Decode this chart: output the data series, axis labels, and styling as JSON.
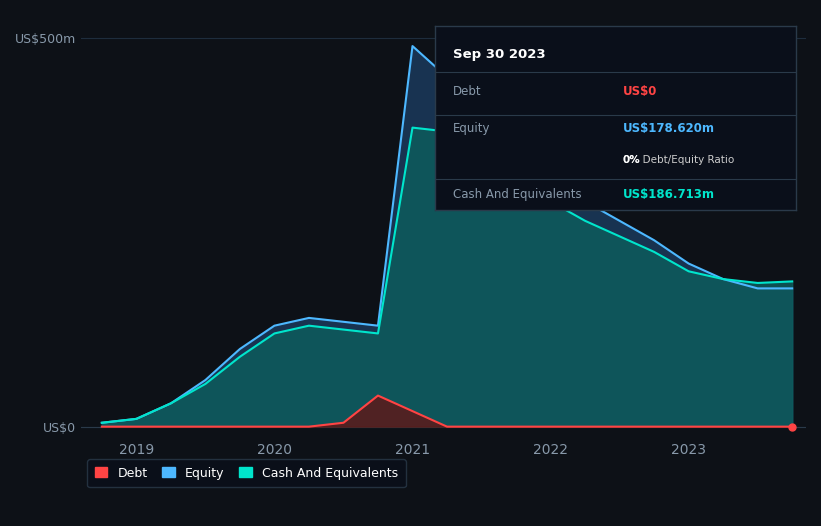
{
  "bg_color": "#0d1117",
  "chart_bg": "#131a24",
  "grid_color": "#1e2d3d",
  "title_text": "Sep 30 2023",
  "tooltip": {
    "title": "Sep 30 2023",
    "debt_label": "Debt",
    "debt_value": "US$0",
    "debt_color": "#ff4444",
    "equity_label": "Equity",
    "equity_value": "US$178.620m",
    "equity_color": "#4db8ff",
    "ratio_value": "0% Debt/Equity Ratio",
    "cash_label": "Cash And Equivalents",
    "cash_value": "US$186.713m",
    "cash_color": "#00e5cc"
  },
  "ylabel_top": "US$500m",
  "ylabel_bottom": "US$0",
  "x_ticks": [
    "2019",
    "2020",
    "2021",
    "2022",
    "2023"
  ],
  "equity_color": "#4db8ff",
  "cash_color": "#00e5cc",
  "debt_color": "#ff4444",
  "equity_fill": "#1a3a5c",
  "cash_fill": "#0d5c5c",
  "debt_fill": "#5c1a1a",
  "legend": [
    {
      "label": "Debt",
      "color": "#ff4444"
    },
    {
      "label": "Equity",
      "color": "#4db8ff"
    },
    {
      "label": "Cash And Equivalents",
      "color": "#00e5cc"
    }
  ],
  "x_data": [
    2018.75,
    2019.0,
    2019.25,
    2019.5,
    2019.75,
    2020.0,
    2020.25,
    2020.5,
    2020.75,
    2021.0,
    2021.25,
    2021.5,
    2021.75,
    2022.0,
    2022.25,
    2022.5,
    2022.75,
    2023.0,
    2023.25,
    2023.5,
    2023.75
  ],
  "equity_data": [
    5,
    10,
    30,
    60,
    100,
    130,
    140,
    135,
    130,
    490,
    450,
    420,
    380,
    320,
    290,
    265,
    240,
    210,
    190,
    178,
    178
  ],
  "cash_data": [
    5,
    10,
    30,
    55,
    90,
    120,
    130,
    125,
    120,
    385,
    380,
    370,
    340,
    290,
    265,
    245,
    225,
    200,
    190,
    185,
    187
  ],
  "debt_data": [
    0,
    0,
    0,
    0,
    0,
    0,
    0,
    5,
    40,
    20,
    0,
    0,
    0,
    0,
    0,
    0,
    0,
    0,
    0,
    0,
    0
  ]
}
